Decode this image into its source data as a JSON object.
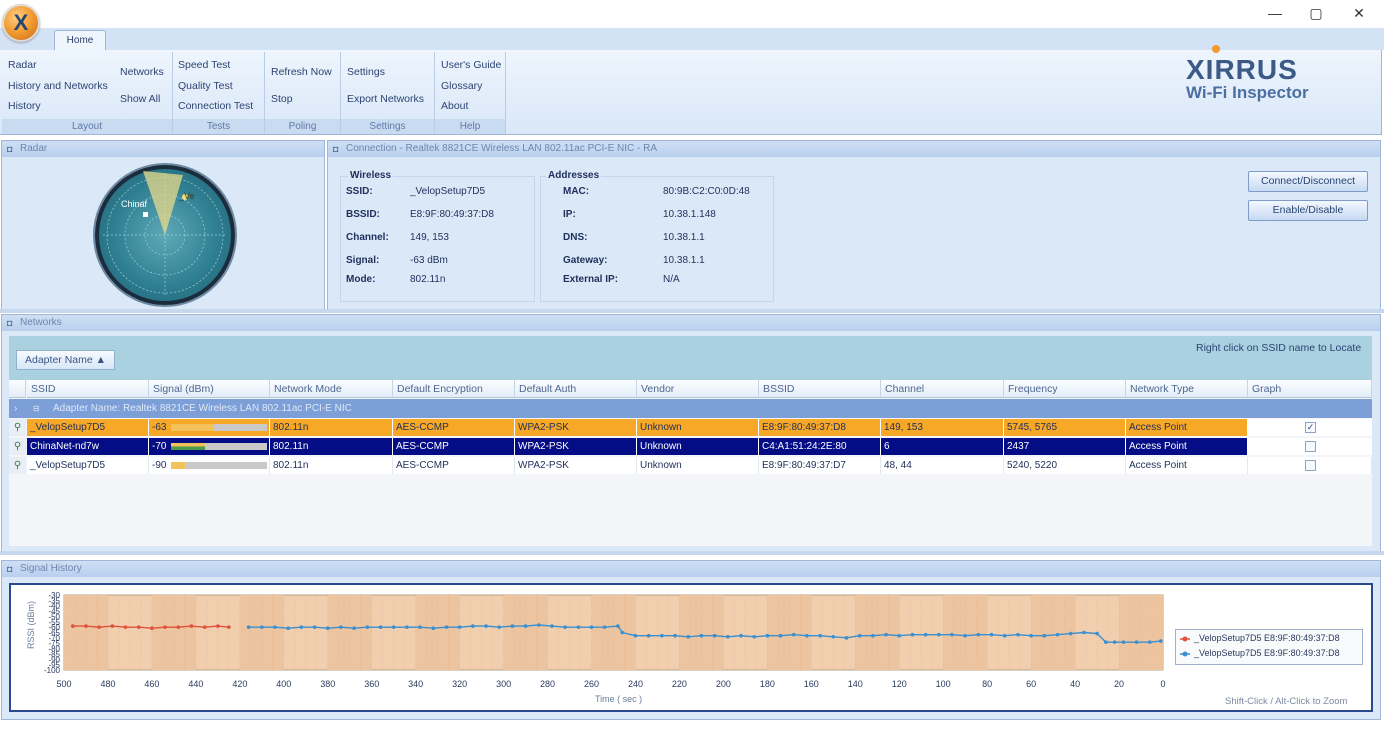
{
  "window": {
    "minimize": "—",
    "maximize": "▢",
    "close": "✕"
  },
  "app_icon": "X",
  "ribbon": {
    "tab": "Home",
    "groups": {
      "layout": {
        "label": "Layout",
        "items": [
          "Radar",
          "History and Networks",
          "History",
          "Networks",
          "Show All"
        ]
      },
      "tests": {
        "label": "Tests",
        "items": [
          "Speed Test",
          "Quality Test",
          "Connection Test"
        ]
      },
      "polling": {
        "label": "Poling",
        "items": [
          "Refresh Now",
          "Stop"
        ]
      },
      "settings": {
        "label": "Settings",
        "items": [
          "Settings",
          "Export Networks"
        ]
      },
      "help": {
        "label": "Help",
        "items": [
          "User's Guide",
          "Glossary",
          "About"
        ]
      }
    },
    "brand": {
      "name": "XIRRUS",
      "product": "Wi-Fi Inspector"
    }
  },
  "radar_panel": {
    "title": "Radar",
    "labels": [
      "Chinaf",
      "_Ve"
    ]
  },
  "connection_panel": {
    "title": "Connection - Realtek 8821CE Wireless LAN 802.11ac PCI-E NIC - RA",
    "wireless": {
      "heading": "Wireless",
      "fields": [
        {
          "key": "SSID:",
          "value": "_VelopSetup7D5"
        },
        {
          "key": "BSSID:",
          "value": "E8:9F:80:49:37:D8"
        },
        {
          "key": "Channel:",
          "value": "149, 153"
        },
        {
          "key": "Signal:",
          "value": "-63 dBm"
        },
        {
          "key": "Mode:",
          "value": "802.11n"
        }
      ]
    },
    "addresses": {
      "heading": "Addresses",
      "fields": [
        {
          "key": "MAC:",
          "value": "80:9B:C2:C0:0D:48"
        },
        {
          "key": "IP:",
          "value": "10.38.1.148"
        },
        {
          "key": "DNS:",
          "value": "10.38.1.1"
        },
        {
          "key": "Gateway:",
          "value": "10.38.1.1"
        },
        {
          "key": "External IP:",
          "value": "N/A"
        }
      ]
    },
    "buttons": {
      "connect": "Connect/Disconnect",
      "enable": "Enable/Disable"
    }
  },
  "networks_panel": {
    "title": "Networks",
    "group_button": "Adapter Name ▲",
    "hint": "Right click on SSID name to Locate",
    "columns": [
      "SSID",
      "Signal (dBm)",
      "Network Mode",
      "Default Encryption",
      "Default Auth",
      "Vendor",
      "BSSID",
      "Channel",
      "Frequency",
      "Network Type",
      "Graph"
    ],
    "group_row": "Adapter Name: Realtek 8821CE Wireless LAN 802.11ac PCI-E NIC",
    "rows": [
      {
        "ssid": "_VelopSetup7D5",
        "signal": "-63",
        "signal_level": 0.45,
        "mode": "802.11n",
        "enc": "AES-CCMP",
        "auth": "WPA2-PSK",
        "vendor": "Unknown",
        "bssid": "E8:9F:80:49:37:D8",
        "channel": "149, 153",
        "freq": "5745, 5765",
        "type": "Access Point",
        "graph": true,
        "style": "orange"
      },
      {
        "ssid": "ChinaNet-nd7w",
        "signal": "-70",
        "signal_level": 0.35,
        "mode": "802.11n",
        "enc": "AES-CCMP",
        "auth": "WPA2-PSK",
        "vendor": "Unknown",
        "bssid": "C4:A1:51:24:2E:80",
        "channel": "6",
        "freq": "2437",
        "type": "Access Point",
        "graph": false,
        "style": "navy"
      },
      {
        "ssid": "_VelopSetup7D5",
        "signal": "-90",
        "signal_level": 0.15,
        "mode": "802.11n",
        "enc": "AES-CCMP",
        "auth": "WPA2-PSK",
        "vendor": "Unknown",
        "bssid": "E8:9F:80:49:37:D7",
        "channel": "48, 44",
        "freq": "5240, 5220",
        "type": "Access Point",
        "graph": false,
        "style": "plain"
      }
    ]
  },
  "history_panel": {
    "title": "Signal History",
    "ylabel": "RSSI (dBm)",
    "xlabel": "Time ( sec )",
    "hint": "Shift-Click / Alt-Click to Zoom",
    "legend": [
      {
        "label": "_VelopSetup7D5 E8:9F:80:49:37:D8",
        "color": "#e0503a"
      },
      {
        "label": "_VelopSetup7D5 E8:9F:80:49:37:D8",
        "color": "#3a8fd0"
      }
    ]
  },
  "chart_data": {
    "type": "line",
    "ylabel": "RSSI (dBm)",
    "xlabel": "Time ( sec )",
    "yticks": [
      "-30",
      "-35",
      "-40",
      "-45",
      "-50",
      "-55",
      "-60",
      "-65",
      "-70",
      "-75",
      "-80",
      "-85",
      "-90",
      "-95",
      "-100"
    ],
    "ylim": [
      -100,
      -30
    ],
    "xticks": [
      "500",
      "480",
      "460",
      "440",
      "420",
      "400",
      "380",
      "360",
      "340",
      "320",
      "300",
      "280",
      "260",
      "240",
      "220",
      "200",
      "180",
      "160",
      "140",
      "120",
      "100",
      "80",
      "60",
      "40",
      "20",
      "0"
    ],
    "xlim": [
      500,
      0
    ],
    "series": [
      {
        "name": "_VelopSetup7D5 E8:9F:80:49:37:D8",
        "color": "#e0503a",
        "x": [
          496,
          490,
          484,
          478,
          472,
          466,
          460,
          454,
          448,
          442,
          436,
          430,
          425
        ],
        "y": [
          -59,
          -59,
          -60,
          -59,
          -60,
          -60,
          -61,
          -60,
          -60,
          -59,
          -60,
          -59,
          -60
        ]
      },
      {
        "name": "_VelopSetup7D5 E8:9F:80:49:37:D8",
        "color": "#3a8fd0",
        "x": [
          416,
          410,
          404,
          398,
          392,
          386,
          380,
          374,
          368,
          362,
          356,
          350,
          344,
          338,
          332,
          326,
          320,
          314,
          308,
          302,
          296,
          290,
          284,
          278,
          272,
          266,
          260,
          254,
          248,
          246,
          240,
          234,
          228,
          222,
          216,
          210,
          204,
          198,
          192,
          186,
          180,
          174,
          168,
          162,
          156,
          150,
          144,
          138,
          132,
          126,
          120,
          114,
          108,
          102,
          96,
          90,
          84,
          78,
          72,
          66,
          60,
          54,
          48,
          42,
          36,
          30,
          26,
          22,
          18,
          12,
          6,
          1
        ],
        "y": [
          -60,
          -60,
          -60,
          -61,
          -60,
          -60,
          -61,
          -60,
          -61,
          -60,
          -60,
          -60,
          -60,
          -60,
          -61,
          -60,
          -60,
          -59,
          -59,
          -60,
          -59,
          -59,
          -58,
          -59,
          -60,
          -60,
          -60,
          -60,
          -59,
          -65,
          -68,
          -68,
          -68,
          -68,
          -69,
          -68,
          -68,
          -69,
          -68,
          -69,
          -68,
          -68,
          -67,
          -68,
          -68,
          -69,
          -70,
          -68,
          -68,
          -67,
          -68,
          -67,
          -67,
          -67,
          -67,
          -68,
          -67,
          -67,
          -68,
          -67,
          -68,
          -68,
          -67,
          -66,
          -65,
          -66,
          -74,
          -74,
          -74,
          -74,
          -74,
          -73
        ]
      }
    ]
  }
}
